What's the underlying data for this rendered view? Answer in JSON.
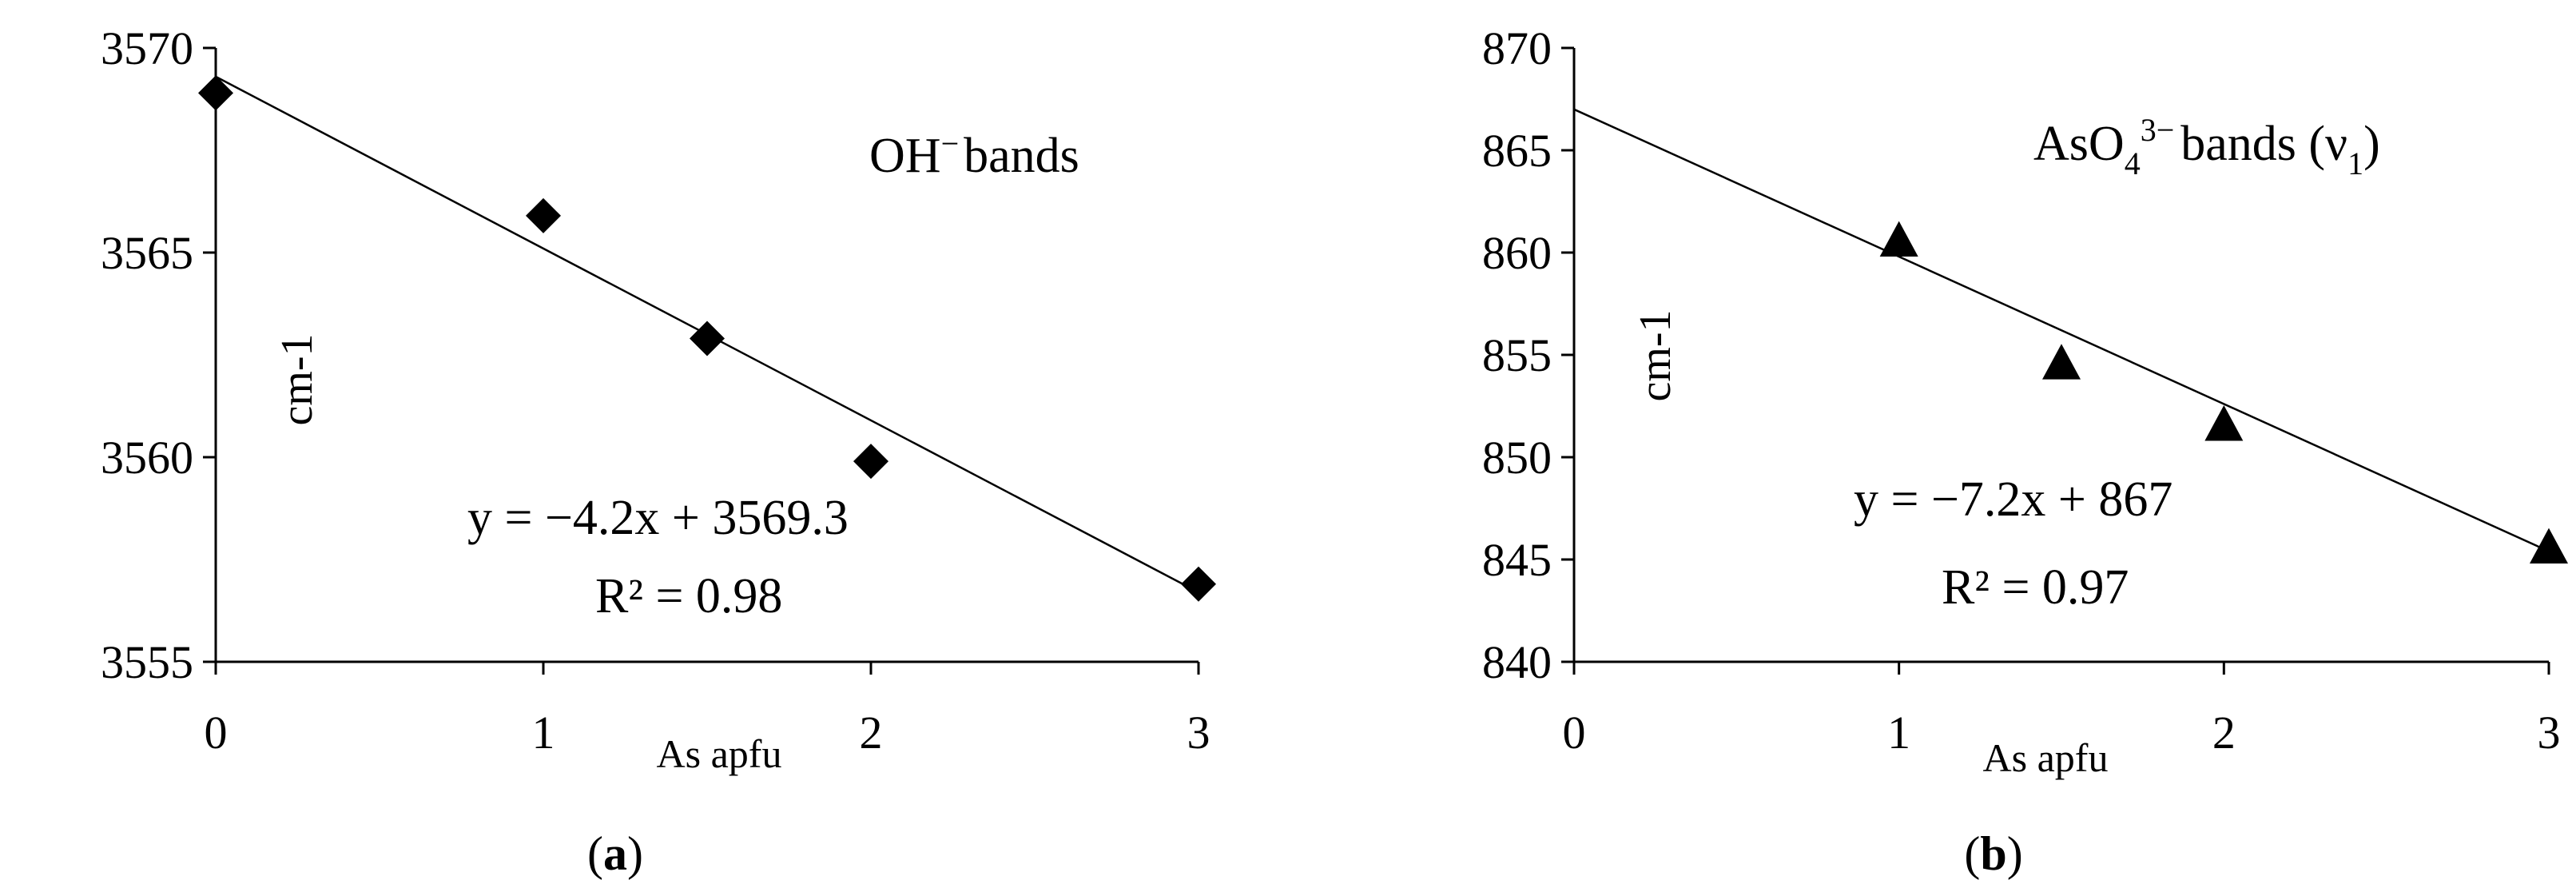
{
  "chart_data": [
    {
      "type": "scatter",
      "x": [
        0,
        1,
        1.5,
        2,
        3
      ],
      "y": [
        3568.9,
        3565.9,
        3562.9,
        3559.9,
        3556.9
      ],
      "marker": "diamond",
      "color": "#000000",
      "xlabel": "As apfu",
      "ylabel": "cm-1",
      "xlim": [
        0,
        3
      ],
      "ylim": [
        3555,
        3570
      ],
      "xticks": [
        "0",
        "1",
        "2",
        "3"
      ],
      "yticks": [
        "3555",
        "3560",
        "3565",
        "3570"
      ],
      "trendline": {
        "slope": -4.2,
        "intercept": 3569.3
      },
      "annotation": {
        "main": "OH",
        "sup": "−",
        "rest": "bands"
      },
      "equation": "y = −4.2x + 3569.3",
      "r2": "R² = 0.98",
      "caption": {
        "open": "(",
        "letter": "a",
        "close": ")"
      },
      "grid": false
    },
    {
      "type": "scatter",
      "x": [
        1,
        1.5,
        2,
        3
      ],
      "y": [
        860.6,
        854.6,
        851.6,
        845.6
      ],
      "marker": "triangle",
      "color": "#000000",
      "xlabel": "As apfu",
      "ylabel": "cm-1",
      "xlim": [
        0,
        3
      ],
      "ylim": [
        840,
        870
      ],
      "xticks": [
        "0",
        "1",
        "2",
        "3"
      ],
      "yticks": [
        "840",
        "845",
        "850",
        "855",
        "860",
        "865",
        "870"
      ],
      "trendline": {
        "slope": -7.2,
        "intercept": 867
      },
      "annotation": {
        "main": "AsO",
        "sub": "4",
        "sup": "3−",
        "rest": "bands (ν",
        "sub2": "1",
        "end": ")"
      },
      "equation": "y = −7.2x + 867",
      "r2": "R² = 0.97",
      "caption": {
        "open": "(",
        "letter": "b",
        "close": ")"
      },
      "grid": false
    }
  ]
}
